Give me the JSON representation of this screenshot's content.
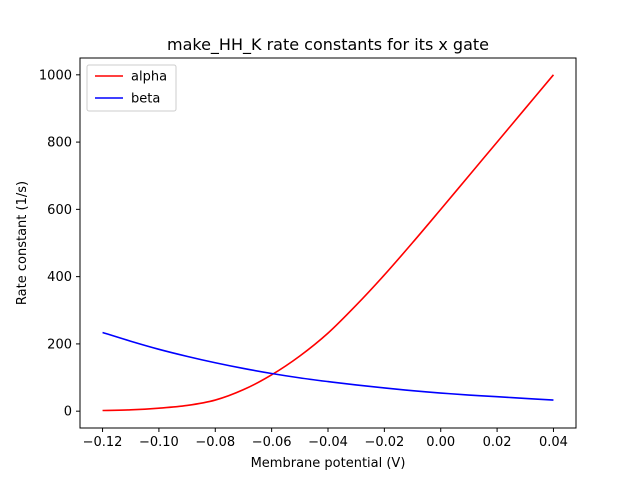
{
  "chart_data": {
    "type": "line",
    "title": "make_HH_K rate constants for its x gate",
    "xlabel": "Membrane potential (V)",
    "ylabel": "Rate constant (1/s)",
    "xlim": [
      -0.128,
      0.048
    ],
    "ylim": [
      -50,
      1050
    ],
    "xticks": [
      -0.12,
      -0.1,
      -0.08,
      -0.06,
      -0.04,
      -0.02,
      0.0,
      0.02,
      0.04
    ],
    "xtick_labels": [
      "−0.12",
      "−0.10",
      "−0.08",
      "−0.06",
      "−0.04",
      "−0.02",
      "0.00",
      "0.02",
      "0.04"
    ],
    "yticks": [
      0,
      200,
      400,
      600,
      800,
      1000
    ],
    "ytick_labels": [
      "0",
      "200",
      "400",
      "600",
      "800",
      "1000"
    ],
    "legend_position": "top-left",
    "grid": false,
    "x": [
      -0.12,
      -0.11,
      -0.1,
      -0.09,
      -0.08,
      -0.07,
      -0.06,
      -0.05,
      -0.04,
      -0.03,
      -0.02,
      -0.01,
      0.0,
      0.01,
      0.02,
      0.03,
      0.04
    ],
    "series": [
      {
        "name": "alpha",
        "color": "#ff0000",
        "values": [
          2,
          4,
          9,
          17,
          33,
          64,
          108,
          164,
          232,
          315,
          405,
          501,
          600,
          700,
          800,
          900,
          1000
        ]
      },
      {
        "name": "beta",
        "color": "#0000ff",
        "values": [
          234,
          208,
          184,
          163,
          144,
          127,
          112,
          99,
          88,
          78,
          69,
          61,
          54,
          48,
          43,
          38,
          33
        ]
      }
    ]
  }
}
